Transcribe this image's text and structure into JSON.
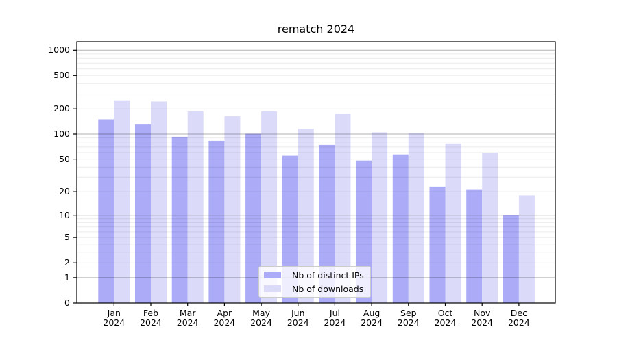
{
  "chart_data": {
    "type": "bar",
    "title": "rematch 2024",
    "categories": [
      "Jan",
      "Feb",
      "Mar",
      "Apr",
      "May",
      "Jun",
      "Jul",
      "Aug",
      "Sep",
      "Oct",
      "Nov",
      "Dec"
    ],
    "category_year": "2024",
    "series": [
      {
        "name": "Nb of distinct IPs",
        "color": "#ababf7",
        "values": [
          150,
          130,
          93,
          83,
          101,
          55,
          74,
          48,
          57,
          23,
          21,
          10
        ]
      },
      {
        "name": "Nb of downloads",
        "color": "#dbdbf9",
        "values": [
          253,
          245,
          187,
          163,
          187,
          116,
          176,
          105,
          103,
          77,
          60,
          18
        ]
      }
    ],
    "yscale": "log1p",
    "ylim": [
      0,
      1250
    ],
    "y_tick_values": [
      0,
      1,
      2,
      5,
      10,
      20,
      50,
      100,
      200,
      500,
      1000
    ],
    "y_tick_labels": [
      "0",
      "1",
      "2",
      "5",
      "10",
      "20",
      "50",
      "100",
      "200",
      "500",
      "1000"
    ],
    "y_major_gridlines": [
      1,
      10,
      100,
      1000
    ],
    "y_minor_gridlines": [
      2,
      3,
      4,
      5,
      6,
      7,
      8,
      9,
      20,
      30,
      40,
      50,
      60,
      70,
      80,
      90,
      200,
      300,
      400,
      500,
      600,
      700,
      800,
      900
    ],
    "grid": "on",
    "legend_position": "lower-center-inside",
    "colors": {
      "major_grid": "rgba(0,0,0,0.30)",
      "minor_grid": "rgba(0,0,0,0.08)",
      "spine": "#000000",
      "background": "#ffffff"
    }
  },
  "legend": {
    "items": [
      {
        "label": "Nb of distinct IPs"
      },
      {
        "label": "Nb of downloads"
      }
    ]
  }
}
